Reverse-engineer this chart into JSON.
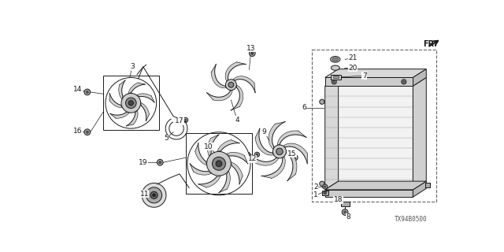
{
  "bg_color": "#ffffff",
  "diagram_code": "TX94B0500",
  "line_color": "#1a1a1a",
  "label_fontsize": 6.5
}
